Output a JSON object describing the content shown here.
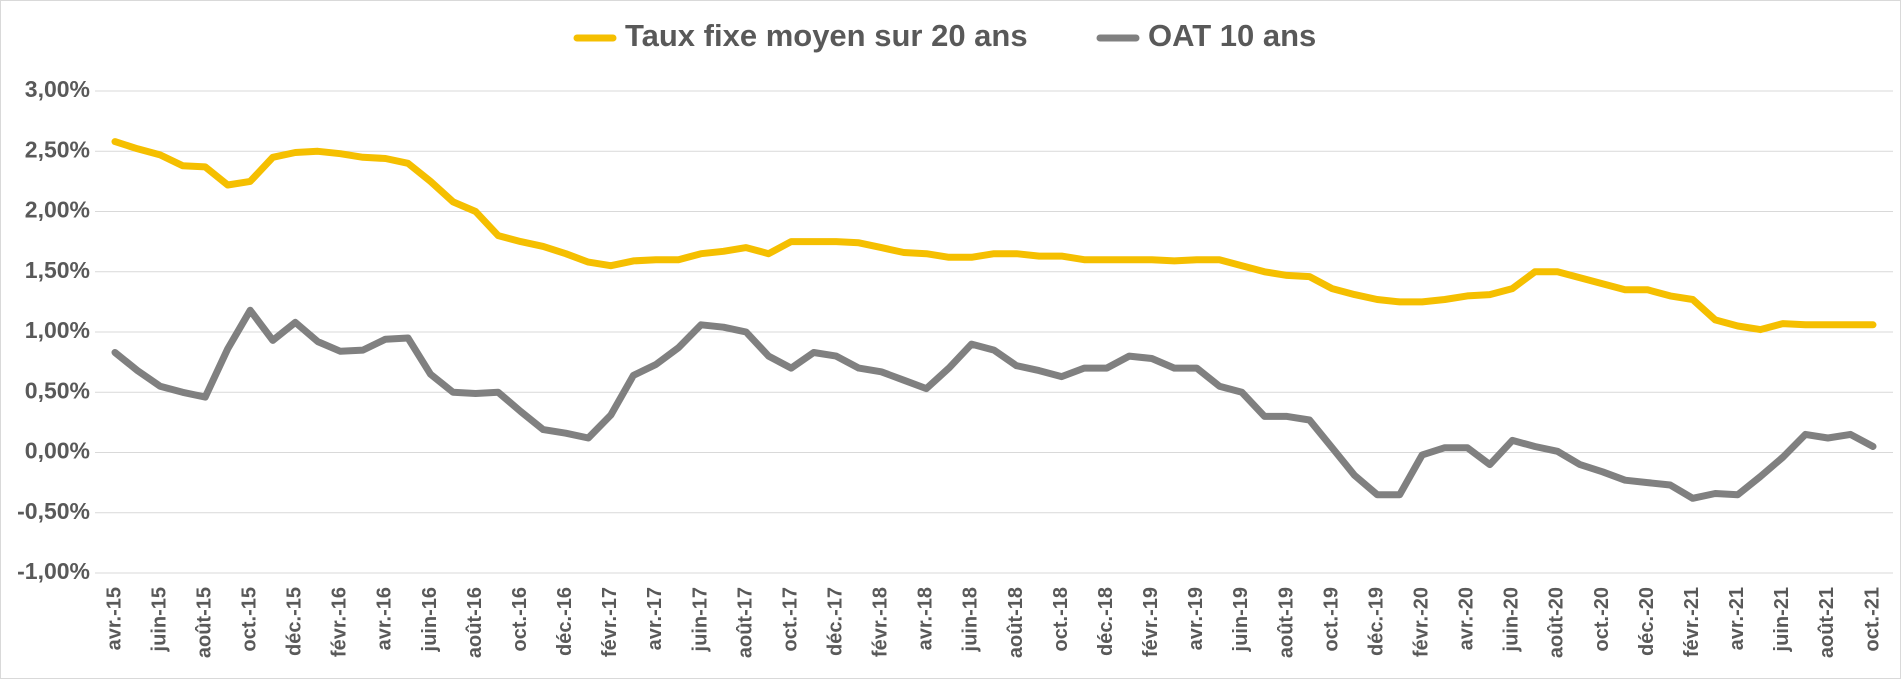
{
  "chart_data": {
    "type": "line",
    "categories": [
      "avr.-15",
      null,
      "juin-15",
      null,
      "août-15",
      null,
      "oct.-15",
      null,
      "déc.-15",
      null,
      "févr.-16",
      null,
      "avr.-16",
      null,
      "juin-16",
      null,
      "août-16",
      null,
      "oct.-16",
      null,
      "déc.-16",
      null,
      "févr.-17",
      null,
      "avr.-17",
      null,
      "juin-17",
      null,
      "août-17",
      null,
      "oct.-17",
      null,
      "déc.-17",
      null,
      "févr.-18",
      null,
      "avr.-18",
      null,
      "juin-18",
      null,
      "août-18",
      null,
      "oct.-18",
      null,
      "déc.-18",
      null,
      "févr.-19",
      null,
      "avr.-19",
      null,
      "juin-19",
      null,
      "août-19",
      null,
      "oct.-19",
      null,
      "déc.-19",
      null,
      "févr.-20",
      null,
      "avr.-20",
      null,
      "juin-20",
      null,
      "août-20",
      null,
      "oct.-20",
      null,
      "déc.-20",
      null,
      "févr.-21",
      null,
      "avr.-21",
      null,
      "juin-21",
      null,
      "août-21",
      null,
      "oct.-21"
    ],
    "series": [
      {
        "name": "Taux fixe moyen sur 20 ans",
        "color": "#f5bf00",
        "values": [
          2.58,
          2.52,
          2.47,
          2.38,
          2.37,
          2.22,
          2.25,
          2.45,
          2.49,
          2.5,
          2.48,
          2.45,
          2.44,
          2.4,
          2.25,
          2.08,
          2.0,
          1.8,
          1.75,
          1.71,
          1.65,
          1.58,
          1.55,
          1.59,
          1.6,
          1.6,
          1.65,
          1.67,
          1.7,
          1.65,
          1.75,
          1.75,
          1.75,
          1.74,
          1.7,
          1.66,
          1.65,
          1.62,
          1.62,
          1.65,
          1.65,
          1.63,
          1.63,
          1.6,
          1.6,
          1.6,
          1.6,
          1.59,
          1.6,
          1.6,
          1.55,
          1.5,
          1.47,
          1.46,
          1.36,
          1.31,
          1.27,
          1.25,
          1.25,
          1.27,
          1.3,
          1.31,
          1.36,
          1.5,
          1.5,
          1.45,
          1.4,
          1.35,
          1.35,
          1.3,
          1.27,
          1.1,
          1.05,
          1.02,
          1.07,
          1.06,
          1.06,
          1.06,
          1.06
        ]
      },
      {
        "name": "OAT 10 ans",
        "color": "#808080",
        "values": [
          0.83,
          0.68,
          0.55,
          0.5,
          0.46,
          0.86,
          1.18,
          0.93,
          1.08,
          0.92,
          0.84,
          0.85,
          0.94,
          0.95,
          0.65,
          0.5,
          0.49,
          0.5,
          0.34,
          0.19,
          0.16,
          0.12,
          0.31,
          0.64,
          0.73,
          0.87,
          1.06,
          1.04,
          1.0,
          0.8,
          0.7,
          0.83,
          0.8,
          0.7,
          0.67,
          0.6,
          0.53,
          0.7,
          0.9,
          0.85,
          0.72,
          0.68,
          0.63,
          0.7,
          0.7,
          0.8,
          0.78,
          0.7,
          0.7,
          0.55,
          0.5,
          0.3,
          0.3,
          0.27,
          0.04,
          -0.19,
          -0.35,
          -0.35,
          -0.02,
          0.04,
          0.04,
          -0.1,
          0.1,
          0.05,
          0.01,
          -0.1,
          -0.16,
          -0.23,
          -0.25,
          -0.27,
          -0.38,
          -0.34,
          -0.35,
          -0.2,
          -0.04,
          0.15,
          0.12,
          0.15,
          0.05
        ]
      }
    ],
    "ylim": [
      -1,
      3
    ],
    "yticks": [
      {
        "value": 3,
        "label": "3,00%"
      },
      {
        "value": 2.5,
        "label": "2,50%"
      },
      {
        "value": 2,
        "label": "2,00%"
      },
      {
        "value": 1.5,
        "label": "1,50%"
      },
      {
        "value": 1,
        "label": "1,00%"
      },
      {
        "value": 0.5,
        "label": "0,50%"
      },
      {
        "value": 0,
        "label": "0,00%"
      },
      {
        "value": -0.5,
        "label": "-0,50%"
      },
      {
        "value": -1,
        "label": "-1,00%"
      }
    ],
    "grid": true,
    "legend": "top"
  }
}
